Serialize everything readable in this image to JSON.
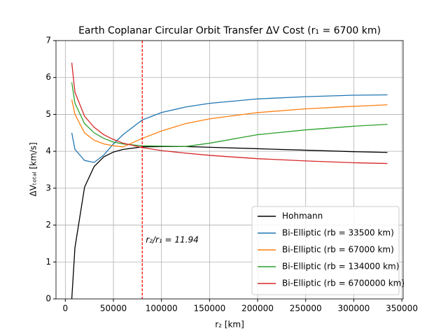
{
  "chart_data": {
    "type": "line",
    "title": "Earth Coplanar Circular Orbit Transfer ΔV Cost (r₁ = 6700 km)",
    "x_label": "r₂ [km]",
    "y_label": "ΔVₜₒₜₐₗ [km/s]",
    "x": [
      6700,
      10000,
      20000,
      30000,
      40000,
      50000,
      60000,
      80000,
      100000,
      125000,
      150000,
      200000,
      250000,
      300000,
      335000
    ],
    "series": [
      {
        "name": "Hohmann",
        "color": "#000000",
        "values": [
          0,
          1.39,
          3.03,
          3.59,
          3.85,
          3.98,
          4.05,
          4.12,
          4.13,
          4.13,
          4.11,
          4.07,
          4.03,
          3.99,
          3.97
        ]
      },
      {
        "name": "Bi-Elliptic (rb = 33500 km)",
        "color": "#1f77b4",
        "values": [
          4.5,
          4.05,
          3.75,
          3.7,
          3.9,
          4.2,
          4.45,
          4.85,
          5.05,
          5.2,
          5.3,
          5.42,
          5.48,
          5.52,
          5.53
        ]
      },
      {
        "name": "Bi-Elliptic (rb = 67000 km)",
        "color": "#ff7f0e",
        "values": [
          5.4,
          5.0,
          4.5,
          4.3,
          4.2,
          4.15,
          4.12,
          4.35,
          4.55,
          4.75,
          4.88,
          5.05,
          5.15,
          5.22,
          5.26
        ]
      },
      {
        "name": "Bi-Elliptic (rb = 134000 km)",
        "color": "#2ca02c",
        "values": [
          5.87,
          5.3,
          4.75,
          4.5,
          4.35,
          4.25,
          4.2,
          4.15,
          4.14,
          4.13,
          4.22,
          4.45,
          4.58,
          4.68,
          4.73
        ]
      },
      {
        "name": "Bi-Elliptic (rb = 6700000 km)",
        "color": "#d62728",
        "values": [
          6.4,
          5.6,
          4.95,
          4.65,
          4.45,
          4.32,
          4.22,
          4.1,
          4.02,
          3.95,
          3.89,
          3.8,
          3.74,
          3.69,
          3.67
        ]
      }
    ],
    "vline": {
      "x": 79998,
      "color": "#ff0000",
      "label": "r₂/r₁ = 11.94"
    },
    "xlim": [
      -9715,
      351415
    ],
    "ylim": [
      0,
      7
    ],
    "xticks": [
      0,
      50000,
      100000,
      150000,
      200000,
      250000,
      300000,
      350000
    ],
    "yticks": [
      0,
      1,
      2,
      3,
      4,
      5,
      6,
      7
    ],
    "grid": true,
    "legend": "lower right"
  }
}
